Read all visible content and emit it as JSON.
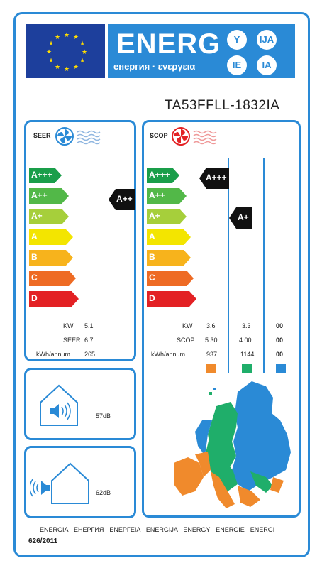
{
  "header": {
    "energy_word": "ENERG",
    "energy_sub": "енергия · ενεργεια",
    "lang_suffixes": [
      "Y",
      "IJA",
      "IE",
      "IA"
    ]
  },
  "model": "TA53FFLL-1832IA",
  "seer_panel": {
    "title": "SEER",
    "classes": [
      "A+++",
      "A++",
      "A+",
      "A",
      "B",
      "C",
      "D"
    ],
    "indicator": "A++",
    "rows": [
      {
        "label": "KW",
        "value": "5.1"
      },
      {
        "label": "SEER",
        "value": "6.7"
      },
      {
        "label": "kWh/annum",
        "value": "265"
      }
    ]
  },
  "scop_panel": {
    "title": "SCOP",
    "classes": [
      "A+++",
      "A++",
      "A+",
      "A",
      "B",
      "C",
      "D"
    ],
    "indicators": [
      "A+++",
      "A+"
    ],
    "rows": [
      {
        "label": "KW",
        "values": [
          "3.6",
          "3.3",
          "00"
        ]
      },
      {
        "label": "SCOP",
        "values": [
          "5.30",
          "4.00",
          "00"
        ]
      },
      {
        "label": "kWh/annum",
        "values": [
          "937",
          "1144",
          "00"
        ]
      }
    ],
    "zone_colors": [
      "#f08a2c",
      "#1fae6a",
      "#2a8ad6"
    ]
  },
  "noise": {
    "indoor_db": "57dB",
    "outdoor_db": "62dB"
  },
  "colors": {
    "class_colors": [
      "#1a9e4a",
      "#52b848",
      "#a6cf3b",
      "#f3e500",
      "#f7b31c",
      "#ee6b24",
      "#e32124"
    ]
  },
  "footer": {
    "line1": "ENERGIA · ЕНЕРГИЯ · ΕΝΕΡΓΕΙΑ · ENERGIJA · ENERGY · ENERGIE · ENERGI",
    "line2": "626/2011"
  }
}
